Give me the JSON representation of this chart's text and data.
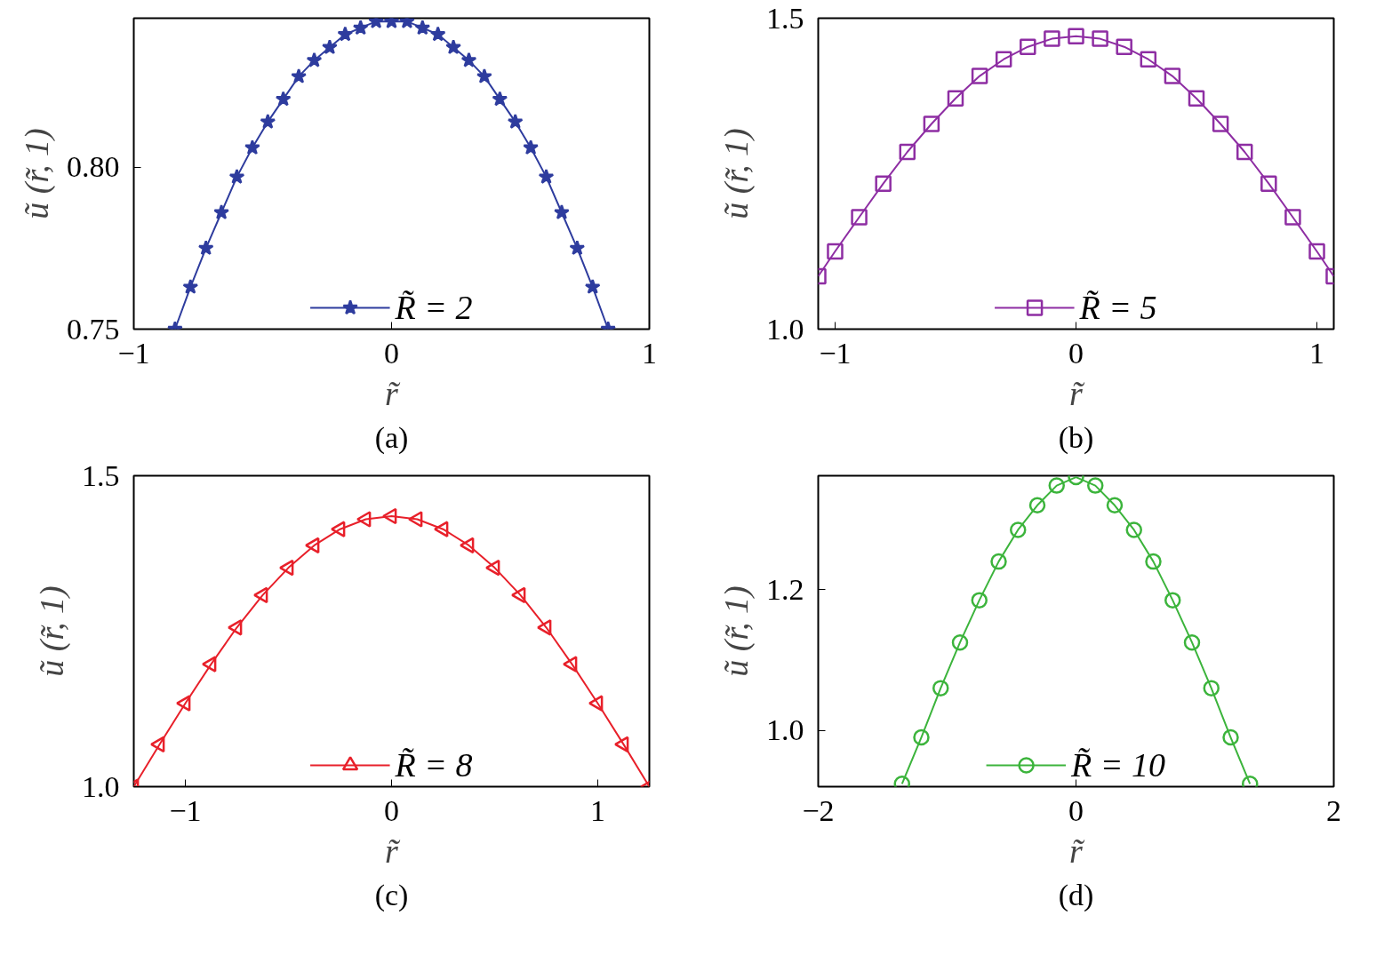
{
  "chart_data": [
    {
      "type": "line",
      "title": "(a)",
      "xlabel": "r̃",
      "ylabel": "ũ (r̃, 1)",
      "marker": "star",
      "legend": "bottom",
      "xlim": [
        -1,
        1
      ],
      "ylim": [
        0.75,
        0.846
      ],
      "xticks": [
        -1,
        0,
        1
      ],
      "yticks": [
        {
          "value": 0.75,
          "label": "0.75"
        },
        {
          "value": 0.8,
          "label": "0.80"
        }
      ],
      "x": [
        -0.84,
        -0.78,
        -0.72,
        -0.66,
        -0.6,
        -0.54,
        -0.48,
        -0.42,
        -0.36,
        -0.3,
        -0.24,
        -0.18,
        -0.12,
        -0.06,
        0,
        0.06,
        0.12,
        0.18,
        0.24,
        0.3,
        0.36,
        0.42,
        0.48,
        0.54,
        0.6,
        0.66,
        0.72,
        0.78,
        0.84
      ],
      "series": [
        {
          "name": "R̃ = 2",
          "color": "#2e3c9e",
          "values": [
            0.75,
            0.763,
            0.775,
            0.786,
            0.797,
            0.806,
            0.814,
            0.821,
            0.828,
            0.833,
            0.837,
            0.841,
            0.843,
            0.845,
            0.845,
            0.845,
            0.843,
            0.841,
            0.837,
            0.833,
            0.828,
            0.821,
            0.814,
            0.806,
            0.797,
            0.786,
            0.775,
            0.763,
            0.75
          ]
        }
      ]
    },
    {
      "type": "line",
      "title": "(b)",
      "xlabel": "r̃",
      "ylabel": "ũ (r̃, 1)",
      "marker": "square",
      "legend": "bottom",
      "xlim": [
        -1.07,
        1.07
      ],
      "ylim": [
        1.0,
        1.5
      ],
      "xticks": [
        -1,
        0,
        1
      ],
      "yticks": [
        {
          "value": 1.0,
          "label": "1.0"
        },
        {
          "value": 1.5,
          "label": "1.5"
        }
      ],
      "x": [
        -1.07,
        -1.0,
        -0.9,
        -0.8,
        -0.7,
        -0.6,
        -0.5,
        -0.4,
        -0.3,
        -0.2,
        -0.1,
        0,
        0.1,
        0.2,
        0.3,
        0.4,
        0.5,
        0.6,
        0.7,
        0.8,
        0.9,
        1.0,
        1.07
      ],
      "series": [
        {
          "name": "R̃ = 5",
          "color": "#8e2ea3",
          "values": [
            1.085,
            1.125,
            1.18,
            1.234,
            1.285,
            1.33,
            1.371,
            1.407,
            1.434,
            1.454,
            1.467,
            1.471,
            1.467,
            1.454,
            1.434,
            1.407,
            1.371,
            1.33,
            1.285,
            1.234,
            1.18,
            1.125,
            1.085
          ]
        }
      ]
    },
    {
      "type": "line",
      "title": "(c)",
      "xlabel": "r̃",
      "ylabel": "ũ (r̃, 1)",
      "marker": "triangle",
      "legend": "bottom",
      "xlim": [
        -1.25,
        1.25
      ],
      "ylim": [
        1.0,
        1.5
      ],
      "xticks": [
        -1,
        0,
        1
      ],
      "yticks": [
        {
          "value": 1.0,
          "label": "1.0"
        },
        {
          "value": 1.5,
          "label": "1.5"
        }
      ],
      "x": [
        -1.25,
        -1.125,
        -1.0,
        -0.875,
        -0.75,
        -0.625,
        -0.5,
        -0.375,
        -0.25,
        -0.125,
        0,
        0.125,
        0.25,
        0.375,
        0.5,
        0.625,
        0.75,
        0.875,
        1.0,
        1.125,
        1.25
      ],
      "series": [
        {
          "name": "R̃ = 8",
          "color": "#e8202a",
          "values": [
            1.0,
            1.068,
            1.134,
            1.197,
            1.256,
            1.308,
            1.352,
            1.388,
            1.414,
            1.43,
            1.435,
            1.43,
            1.414,
            1.388,
            1.352,
            1.308,
            1.256,
            1.197,
            1.134,
            1.068,
            1.0
          ]
        }
      ]
    },
    {
      "type": "line",
      "title": "(d)",
      "xlabel": "r̃",
      "ylabel": "ũ (r̃, 1)",
      "marker": "circle",
      "legend": "bottom",
      "xlim": [
        -2,
        2
      ],
      "ylim": [
        0.92,
        1.362
      ],
      "xticks": [
        -2,
        0,
        2
      ],
      "yticks": [
        {
          "value": 1.0,
          "label": "1.0"
        },
        {
          "value": 1.2,
          "label": "1.2"
        }
      ],
      "x": [
        -1.35,
        -1.2,
        -1.05,
        -0.9,
        -0.75,
        -0.6,
        -0.45,
        -0.3,
        -0.15,
        0,
        0.15,
        0.3,
        0.45,
        0.6,
        0.75,
        0.9,
        1.05,
        1.2,
        1.35
      ],
      "series": [
        {
          "name": "R̃ = 10",
          "color": "#3cb43c",
          "values": [
            0.924,
            0.99,
            1.06,
            1.125,
            1.185,
            1.24,
            1.285,
            1.32,
            1.348,
            1.36,
            1.348,
            1.32,
            1.285,
            1.24,
            1.185,
            1.125,
            1.06,
            0.99,
            0.924
          ]
        }
      ]
    }
  ]
}
